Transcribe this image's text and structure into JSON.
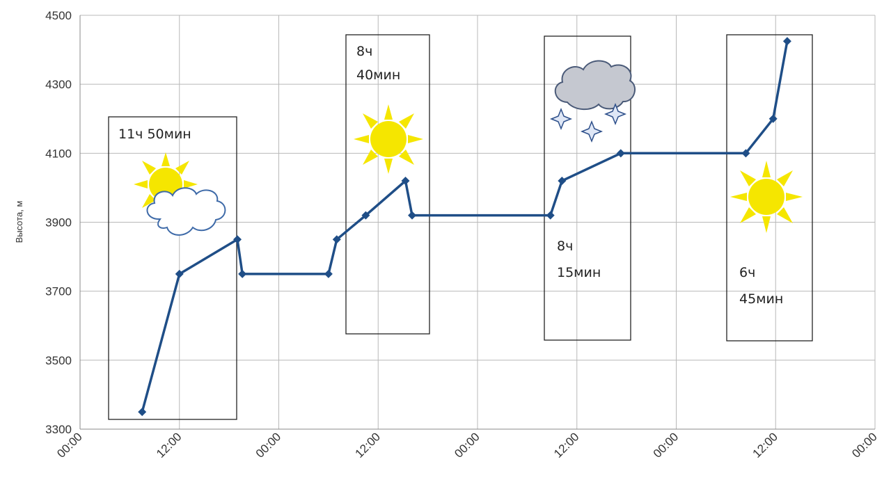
{
  "chart_data": {
    "type": "line",
    "title": "",
    "xlabel": "",
    "ylabel": "Высота, м",
    "ylim": [
      3300,
      4500
    ],
    "yticks": [
      "3300",
      "3500",
      "3700",
      "3900",
      "4100",
      "4300",
      "4500"
    ],
    "xticks": [
      "00:00",
      "12:00",
      "00:00",
      "12:00",
      "00:00",
      "12:00",
      "00:00",
      "12:00",
      "00:00"
    ],
    "grid": true,
    "x_unit": "hours",
    "xlim": [
      0,
      96
    ],
    "series": [
      {
        "color": "#1f4e87",
        "points": [
          {
            "x": 7.5,
            "y": 3350
          },
          {
            "x": 12,
            "y": 3750
          },
          {
            "x": 19,
            "y": 3850
          },
          {
            "x": 19.6,
            "y": 3750
          },
          {
            "x": 30,
            "y": 3750
          },
          {
            "x": 31,
            "y": 3850
          },
          {
            "x": 34.5,
            "y": 3920
          },
          {
            "x": 39.3,
            "y": 4020
          },
          {
            "x": 40.1,
            "y": 3920
          },
          {
            "x": 56.8,
            "y": 3920
          },
          {
            "x": 58.2,
            "y": 4020
          },
          {
            "x": 65.3,
            "y": 4100
          },
          {
            "x": 80.4,
            "y": 4100
          },
          {
            "x": 83.7,
            "y": 4200
          },
          {
            "x": 85.4,
            "y": 4425
          }
        ]
      }
    ],
    "annotations": [
      {
        "lines": [
          "11ч 50мин"
        ],
        "weather": "sun-behind-cloud-icon"
      },
      {
        "lines": [
          "8ч",
          "40мин"
        ],
        "weather": "sun-icon"
      },
      {
        "lines": [
          "8ч",
          "15мин"
        ],
        "weather": "cloud-snow-icon"
      },
      {
        "lines": [
          "6ч",
          "45мин"
        ],
        "weather": "sun-icon"
      }
    ]
  }
}
